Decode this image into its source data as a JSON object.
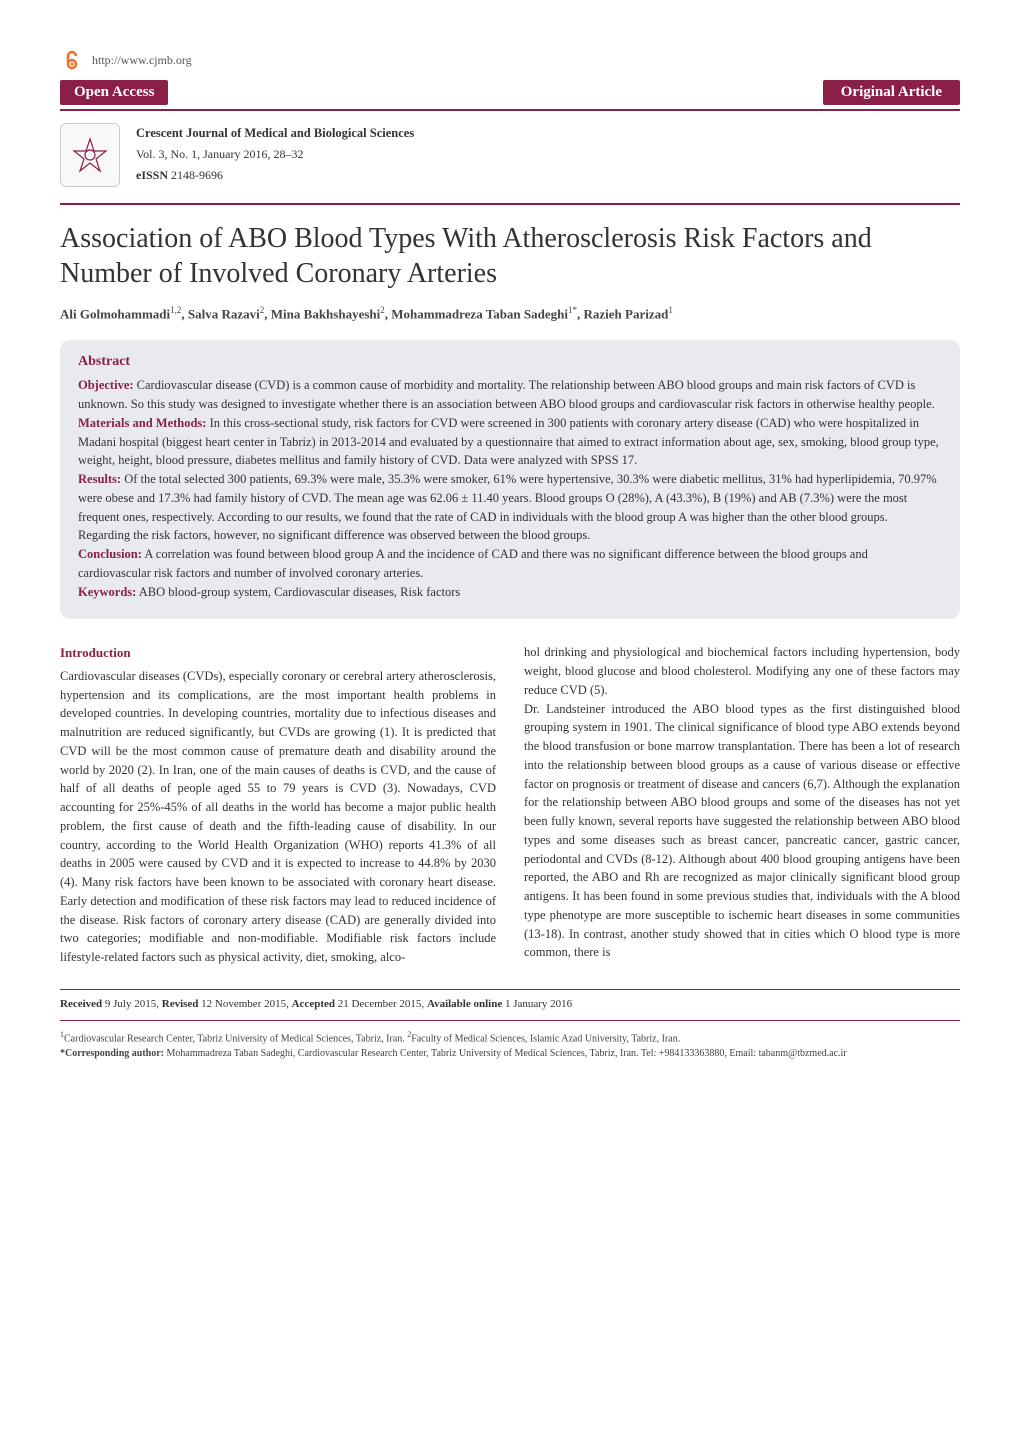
{
  "header": {
    "url": "http://www.cjmb.org",
    "open_access_label": "Open Access",
    "article_type_label": "Original Article",
    "journal_name": "Crescent Journal of Medical and Biological Sciences",
    "volume_issue": "Vol. 3, No. 1, January 2016, 28–32",
    "eissn_label": "eISSN",
    "eissn_value": "2148-9696"
  },
  "colors": {
    "brand": "#8a1f49",
    "abstract_bg": "#e8eaf0",
    "body_text": "#333333",
    "oa_icon": "#f36f21"
  },
  "title": "Association of ABO Blood Types With Atherosclerosis Risk Factors and Number of Involved Coronary Arteries",
  "authors_html": "Ali Golmohammadi<sup>1,2</sup>, Salva Razavi<sup>2</sup>, Mina Bakhshayeshi<sup>2</sup>, Mohammadreza Taban Sadeghi<sup>1*</sup>, Razieh Parizad<sup>1</sup>",
  "abstract": {
    "heading": "Abstract",
    "objective_label": "Objective:",
    "objective_text": " Cardiovascular disease (CVD) is a common cause of morbidity and mortality. The relationship between ABO blood groups and main risk factors of CVD is unknown. So this study was designed to investigate whether there is an association between ABO blood groups and cardiovascular risk factors in otherwise healthy people.",
    "methods_label": "Materials and Methods:",
    "methods_text": " In this cross-sectional study, risk factors for CVD were screened in 300 patients with coronary artery disease (CAD) who were hospitalized in Madani hospital (biggest heart center in Tabriz) in 2013-2014 and evaluated by a questionnaire that aimed to extract information about age, sex, smoking, blood group type, weight, height, blood pressure, diabetes mellitus and family history of CVD. Data were analyzed with SPSS 17.",
    "results_label": "Results:",
    "results_text": " Of the total selected 300 patients, 69.3% were male, 35.3% were smoker, 61% were hypertensive, 30.3% were diabetic mellitus, 31% had hyperlipidemia, 70.97% were obese and 17.3% had family history of CVD. The mean age was 62.06 ± 11.40 years. Blood groups O (28%), A (43.3%), B (19%) and AB (7.3%) were the most frequent ones, respectively. According to our results, we found that the rate of CAD in individuals with the blood group A was higher than the other blood groups. Regarding the risk factors, however, no significant difference was observed between the blood groups.",
    "conclusion_label": "Conclusion:",
    "conclusion_text": " A correlation was found between blood group A and the incidence of CAD and there was no significant difference between the blood groups and cardiovascular risk factors and number of involved coronary arteries.",
    "keywords_label": "Keywords:",
    "keywords_text": " ABO blood-group system, Cardiovascular diseases, Risk factors"
  },
  "body": {
    "intro_heading": "Introduction",
    "col1_p1": "Cardiovascular diseases (CVDs), especially coronary or cerebral artery atherosclerosis, hypertension and its complications, are the most important health problems in developed countries. In developing countries, mortality due to infectious diseases and malnutrition are reduced significantly, but CVDs are growing (1). It is predicted that CVD will be the most common cause of premature death and disability around the world by 2020 (2). In Iran, one of the main causes of deaths is CVD, and the cause of half of all deaths of people aged 55 to 79 years is CVD (3). Nowadays, CVD accounting for 25%-45% of all deaths in the world has become a major public health problem, the first cause of death and the fifth-leading cause of disability. In our country, according to the World Health Organization (WHO) reports 41.3% of all deaths in 2005 were caused by CVD and it is expected to increase to 44.8% by 2030 (4).",
    "col1_p2": "Many risk factors have been known to be associated with coronary heart disease. Early detection and modification of these risk factors may lead to reduced incidence of the disease. Risk factors of coronary artery disease (CAD) are generally divided into two categories; modifiable and non-modifiable. Modifiable risk factors include lifestyle-related factors such as physical activity, diet, smoking, alco-",
    "col2_p1": "hol drinking and physiological and biochemical factors including hypertension, body weight, blood glucose and blood cholesterol. Modifying any one of these factors may reduce CVD (5).",
    "col2_p2": "Dr. Landsteiner introduced the ABO blood types as the first distinguished blood grouping system in 1901. The clinical significance of blood type ABO extends beyond the blood transfusion or bone marrow transplantation. There has been a lot of research into the relationship between blood groups as a cause of various disease or effective factor on prognosis or treatment of disease and cancers (6,7). Although the explanation for the relationship between ABO blood groups and some of the diseases has not yet been fully known, several reports have suggested the relationship between ABO blood types and some diseases such as breast cancer, pancreatic cancer, gastric cancer, periodontal and CVDs (8-12). Although about 400 blood grouping antigens have been reported, the ABO and Rh are recognized as major clinically significant blood group antigens. It has been found in some previous studies that, individuals with the A blood type phenotype are more susceptible to ischemic heart diseases in some communities (13-18). In contrast, another study showed that in cities which O blood type is more common, there is"
  },
  "footer": {
    "received_label": "Received",
    "received_date": "9 July 2015,",
    "revised_label": "Revised",
    "revised_date": "12 November 2015,",
    "accepted_label": "Accepted",
    "accepted_date": "21 December 2015,",
    "online_label": "Available online",
    "online_date": "1 January 2016",
    "affil1": "Cardiovascular Research Center, Tabriz University of Medical Sciences, Tabriz, Iran. ",
    "affil2": "Faculty of Medical Sciences, Islamic Azad University, Tabriz, Iran.",
    "corresponding_label": "*Corresponding author:",
    "corresponding_text": " Mohammadreza Taban Sadeghi, Cardiovascular Research Center, Tabriz University of Medical Sciences, Tabriz, Iran. Tel: +984133363880, Email: tabanm@tbzmed.ac.ir"
  }
}
